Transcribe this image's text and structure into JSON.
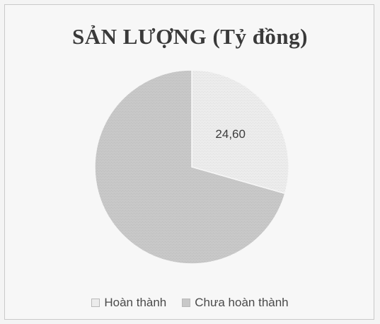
{
  "chart_data": {
    "type": "pie",
    "title": "SẢN LƯỢNG (Tỷ đồng)",
    "categories": [
      "Hoàn thành",
      "Chưa hoàn thành"
    ],
    "values": [
      24.6,
      59.0
    ],
    "data_labels": [
      "24,60",
      ""
    ],
    "colors": [
      "#ececec",
      "#c8c8c8"
    ],
    "legend_position": "bottom"
  }
}
